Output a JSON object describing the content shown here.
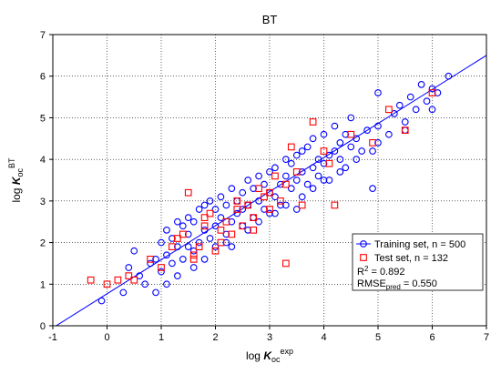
{
  "chart_data": {
    "type": "scatter",
    "title": "BT",
    "xlabel": {
      "prefix": "log ",
      "main": "K",
      "sub": "oc",
      "sup": "exp"
    },
    "ylabel": {
      "prefix": "log ",
      "main": "K",
      "sub": "oc",
      "sup": "BT"
    },
    "xlim": [
      -1,
      7
    ],
    "ylim": [
      0,
      7
    ],
    "xticks": [
      "-1",
      "0",
      "1",
      "2",
      "3",
      "4",
      "5",
      "6",
      "7"
    ],
    "yticks": [
      "0",
      "1",
      "2",
      "3",
      "4",
      "5",
      "6",
      "7"
    ],
    "grid": true,
    "legend_placement": "bottom-right",
    "series": [
      {
        "name": "Training set, n = 500",
        "marker": "circle",
        "color": "#0000ff",
        "x": [
          -0.1,
          0.3,
          0.4,
          0.5,
          0.6,
          0.7,
          0.8,
          0.9,
          1.0,
          1.0,
          1.1,
          1.1,
          1.2,
          1.2,
          1.3,
          1.3,
          1.4,
          1.4,
          1.5,
          1.5,
          1.5,
          1.6,
          1.6,
          1.7,
          1.7,
          1.8,
          1.8,
          1.9,
          1.9,
          2.0,
          2.0,
          2.0,
          2.1,
          2.1,
          2.2,
          2.2,
          2.3,
          2.3,
          2.4,
          2.4,
          2.5,
          2.5,
          2.5,
          2.6,
          2.6,
          2.7,
          2.7,
          2.8,
          2.8,
          2.9,
          2.9,
          3.0,
          3.0,
          3.0,
          3.1,
          3.1,
          3.2,
          3.2,
          3.3,
          3.3,
          3.4,
          3.4,
          3.5,
          3.5,
          3.5,
          3.6,
          3.6,
          3.7,
          3.7,
          3.8,
          3.8,
          3.9,
          3.9,
          4.0,
          4.0,
          4.1,
          4.1,
          4.2,
          4.2,
          4.3,
          4.3,
          4.4,
          4.4,
          4.5,
          4.5,
          4.6,
          4.7,
          4.8,
          4.9,
          5.0,
          5.0,
          5.2,
          5.3,
          5.4,
          5.5,
          5.6,
          5.7,
          5.8,
          5.9,
          6.0,
          6.1,
          6.3,
          0.9,
          1.3,
          1.8,
          2.2,
          2.6,
          3.1,
          3.6,
          4.0,
          4.6,
          5.0,
          1.1,
          1.6,
          2.3,
          2.8,
          3.3,
          3.8,
          4.3,
          4.9,
          5.5,
          6.0
        ],
        "y": [
          0.6,
          0.8,
          1.4,
          1.8,
          1.2,
          1.0,
          1.5,
          1.6,
          1.3,
          2.0,
          1.7,
          2.3,
          1.5,
          2.1,
          1.9,
          2.5,
          1.6,
          2.4,
          1.9,
          2.6,
          2.2,
          1.8,
          2.5,
          2.0,
          2.8,
          2.3,
          2.9,
          2.1,
          3.0,
          2.4,
          1.9,
          2.8,
          2.6,
          3.1,
          2.2,
          2.9,
          2.5,
          3.3,
          2.7,
          3.0,
          2.4,
          3.2,
          2.8,
          2.9,
          3.5,
          2.6,
          3.3,
          3.0,
          3.6,
          2.8,
          3.4,
          3.2,
          2.7,
          3.7,
          3.1,
          3.8,
          3.4,
          2.9,
          3.6,
          4.0,
          3.3,
          3.9,
          3.5,
          4.1,
          2.8,
          3.7,
          4.2,
          3.4,
          4.3,
          3.8,
          4.5,
          3.6,
          4.0,
          3.9,
          4.6,
          4.1,
          3.5,
          4.2,
          4.8,
          4.0,
          4.4,
          3.8,
          4.6,
          4.3,
          5.0,
          4.5,
          4.2,
          4.7,
          3.3,
          4.8,
          5.6,
          4.6,
          5.1,
          5.3,
          4.9,
          5.5,
          5.2,
          5.8,
          5.4,
          5.7,
          5.6,
          6.0,
          0.8,
          1.2,
          1.6,
          2.0,
          2.3,
          2.7,
          3.1,
          3.5,
          4.0,
          4.4,
          1.0,
          1.4,
          1.9,
          2.5,
          2.9,
          3.3,
          3.7,
          4.2,
          4.7,
          5.2
        ]
      },
      {
        "name": "Test set, n = 132",
        "marker": "square",
        "color": "#ff0000",
        "x": [
          -0.3,
          0.0,
          0.2,
          0.4,
          0.5,
          0.8,
          1.0,
          1.2,
          1.4,
          1.5,
          1.6,
          1.7,
          1.8,
          1.9,
          2.0,
          2.1,
          2.2,
          2.3,
          2.4,
          2.5,
          2.6,
          2.7,
          2.8,
          2.9,
          3.0,
          3.1,
          3.2,
          3.3,
          3.4,
          3.6,
          3.8,
          4.0,
          4.2,
          4.5,
          4.9,
          5.2,
          5.5,
          6.0,
          1.3,
          1.8,
          2.4,
          3.0,
          3.5,
          4.1,
          1.6,
          2.1,
          2.7,
          3.3
        ],
        "y": [
          1.1,
          1.0,
          1.1,
          1.2,
          1.1,
          1.6,
          1.4,
          1.9,
          2.2,
          3.2,
          1.6,
          1.9,
          2.4,
          2.7,
          1.8,
          2.3,
          2.5,
          2.2,
          3.0,
          2.4,
          2.9,
          2.6,
          3.3,
          3.1,
          2.8,
          3.6,
          3.0,
          3.4,
          4.3,
          2.9,
          4.9,
          4.2,
          2.9,
          4.6,
          4.4,
          5.2,
          4.7,
          5.6,
          2.1,
          2.6,
          2.8,
          3.2,
          3.7,
          3.9,
          1.7,
          2.0,
          2.3,
          1.5
        ]
      }
    ],
    "fit_line": {
      "x": [
        -1,
        7
      ],
      "y": [
        -0.05,
        6.5
      ],
      "color": "#0000ff"
    },
    "legend": {
      "entries": [
        "Training set, n = 500",
        "Test set, n = 132"
      ],
      "r2_label": "R",
      "r2_sup": "2",
      "r2_value": " = 0.892",
      "rmse_label": "RMSE",
      "rmse_sub": "pred",
      "rmse_value": " = 0.550"
    }
  }
}
